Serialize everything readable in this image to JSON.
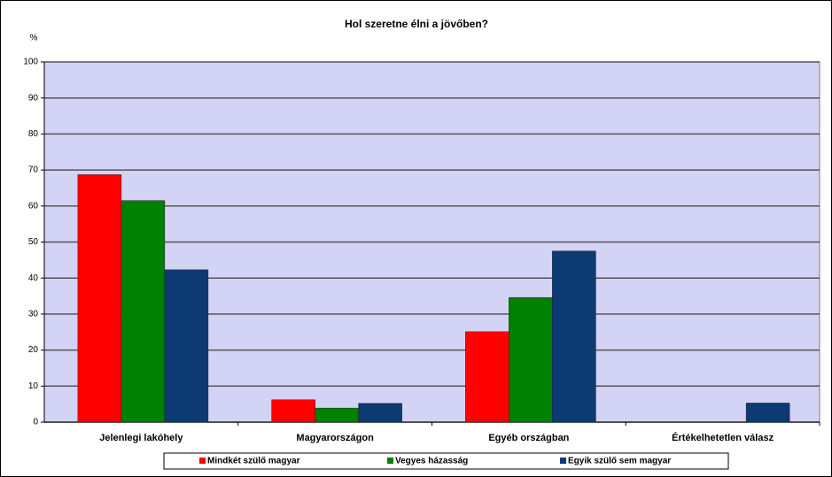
{
  "chart_data": {
    "type": "bar",
    "title": "Hol szeretne élni a jövőben?",
    "y_label": "%",
    "categories": [
      "Jelenlegi lakóhely",
      "Magyarországon",
      "Egyéb országban",
      "Értékelhetetlen válasz"
    ],
    "series": [
      {
        "name": "Mindkét szülő magyar",
        "color": "#ff0000",
        "values": [
          68.7,
          6.2,
          25.1,
          0
        ]
      },
      {
        "name": "Vegyes házasság",
        "color": "#008000",
        "values": [
          61.5,
          3.9,
          34.6,
          0
        ]
      },
      {
        "name": "Egyik szülő sem magyar",
        "color": "#0d3a72",
        "values": [
          42.3,
          5.2,
          47.5,
          5.3
        ]
      }
    ],
    "ylim": [
      0,
      100
    ],
    "yticks": [
      0,
      10,
      20,
      30,
      40,
      50,
      60,
      70,
      80,
      90,
      100
    ],
    "grid": true,
    "legend": "bottom"
  }
}
